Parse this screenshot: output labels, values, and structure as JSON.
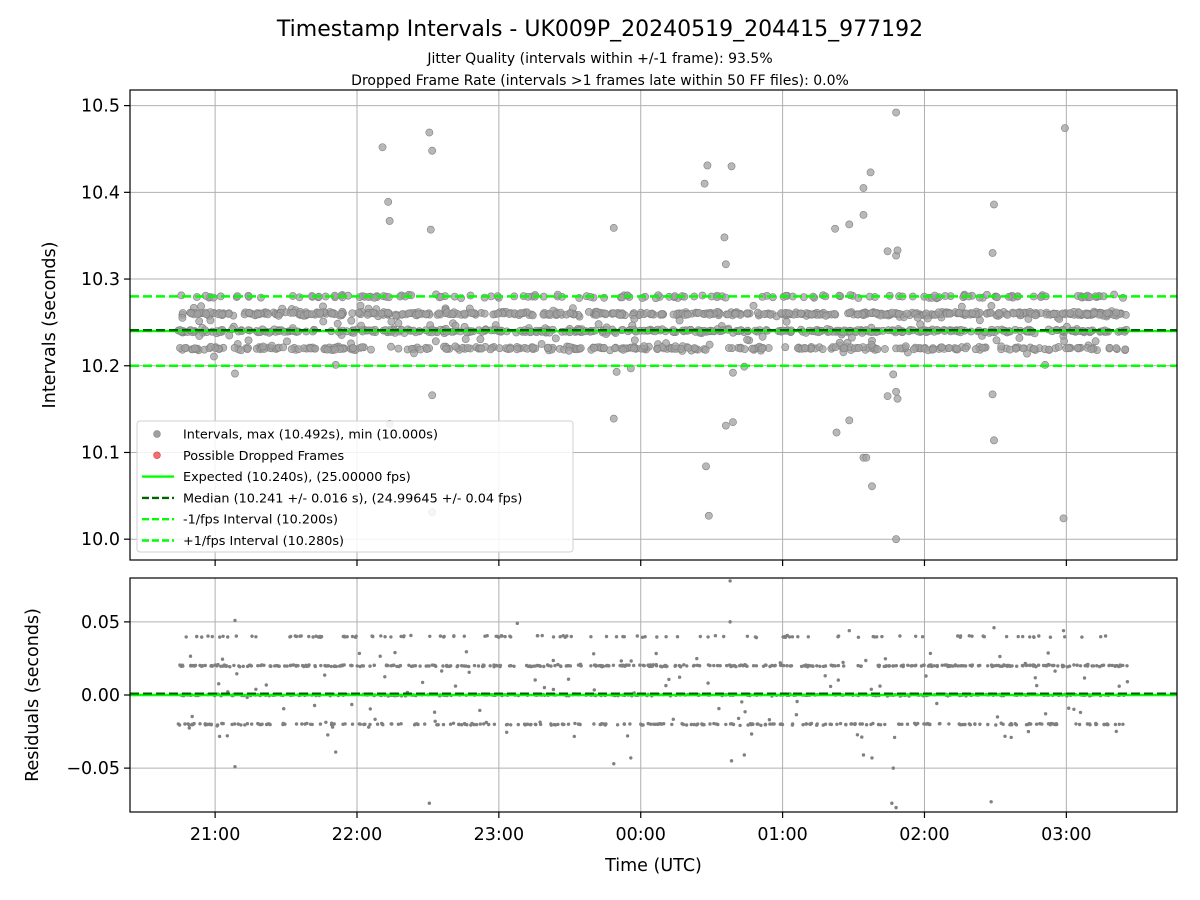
{
  "chart_data": {
    "type": "scatter",
    "title": "Timestamp Intervals - UK009P_20240519_204415_977192",
    "subtitle_lines": [
      "Jitter Quality (intervals within +/-1 frame): 93.5%",
      "Dropped Frame Rate (intervals >1 frames late within 50 FF files): 0.0%"
    ],
    "x_tick_labels": [
      "21:00",
      "22:00",
      "23:00",
      "00:00",
      "01:00",
      "02:00",
      "03:00"
    ],
    "x_ticks": [
      20.5,
      21.5,
      22.5,
      23.5,
      24.5,
      25.5,
      26.5
    ],
    "xlim": [
      19.9,
      27.28
    ],
    "xlabel": "Time (UTC)",
    "data_range_x": [
      20.24,
      26.94
    ],
    "grid": true,
    "top_panel": {
      "ylabel": "Intervals (seconds)",
      "ylim": [
        9.976,
        10.518
      ],
      "y_ticks": [
        10.0,
        10.1,
        10.2,
        10.3,
        10.4,
        10.5
      ],
      "y_tick_labels": [
        "10.0",
        "10.1",
        "10.2",
        "10.3",
        "10.4",
        "10.5"
      ],
      "band_levels": [
        10.22,
        10.24,
        10.26,
        10.28
      ],
      "outliers": [
        {
          "x": 21.68,
          "y": 10.452
        },
        {
          "x": 21.72,
          "y": 10.389
        },
        {
          "x": 21.73,
          "y": 10.367
        },
        {
          "x": 22.01,
          "y": 10.469
        },
        {
          "x": 22.03,
          "y": 10.448
        },
        {
          "x": 22.02,
          "y": 10.357
        },
        {
          "x": 22.03,
          "y": 10.166
        },
        {
          "x": 22.03,
          "y": 10.031
        },
        {
          "x": 21.73,
          "y": 10.133
        },
        {
          "x": 23.31,
          "y": 10.359
        },
        {
          "x": 23.31,
          "y": 10.139
        },
        {
          "x": 23.33,
          "y": 10.193
        },
        {
          "x": 23.43,
          "y": 10.197
        },
        {
          "x": 23.95,
          "y": 10.41
        },
        {
          "x": 23.97,
          "y": 10.431
        },
        {
          "x": 23.96,
          "y": 10.084
        },
        {
          "x": 23.98,
          "y": 10.027
        },
        {
          "x": 24.14,
          "y": 10.43
        },
        {
          "x": 24.09,
          "y": 10.348
        },
        {
          "x": 24.1,
          "y": 10.317
        },
        {
          "x": 24.1,
          "y": 10.131
        },
        {
          "x": 24.15,
          "y": 10.135
        },
        {
          "x": 24.15,
          "y": 10.192
        },
        {
          "x": 24.23,
          "y": 10.199
        },
        {
          "x": 24.87,
          "y": 10.358
        },
        {
          "x": 24.97,
          "y": 10.363
        },
        {
          "x": 25.07,
          "y": 10.374
        },
        {
          "x": 24.88,
          "y": 10.123
        },
        {
          "x": 24.97,
          "y": 10.137
        },
        {
          "x": 25.07,
          "y": 10.405
        },
        {
          "x": 25.12,
          "y": 10.423
        },
        {
          "x": 25.07,
          "y": 10.094
        },
        {
          "x": 25.09,
          "y": 10.094
        },
        {
          "x": 25.13,
          "y": 10.061
        },
        {
          "x": 25.24,
          "y": 10.332
        },
        {
          "x": 25.3,
          "y": 10.327
        },
        {
          "x": 25.31,
          "y": 10.333
        },
        {
          "x": 25.3,
          "y": 10.492
        },
        {
          "x": 25.24,
          "y": 10.165
        },
        {
          "x": 25.3,
          "y": 10.17
        },
        {
          "x": 25.31,
          "y": 10.162
        },
        {
          "x": 25.28,
          "y": 10.19
        },
        {
          "x": 25.3,
          "y": 10.0
        },
        {
          "x": 25.99,
          "y": 10.386
        },
        {
          "x": 25.98,
          "y": 10.33
        },
        {
          "x": 25.98,
          "y": 10.167
        },
        {
          "x": 25.99,
          "y": 10.114
        },
        {
          "x": 26.49,
          "y": 10.474
        },
        {
          "x": 26.48,
          "y": 10.024
        },
        {
          "x": 20.64,
          "y": 10.191
        },
        {
          "x": 21.35,
          "y": 10.201
        },
        {
          "x": 26.35,
          "y": 10.201
        }
      ]
    },
    "bottom_panel": {
      "ylabel": "Residuals (seconds)",
      "ylim": [
        -0.08,
        0.08
      ],
      "y_ticks": [
        -0.05,
        0.0,
        0.05
      ],
      "y_tick_labels": [
        "−0.05",
        "0.00",
        "0.05"
      ],
      "band_levels": [
        -0.02,
        0.0,
        0.02,
        0.04
      ],
      "outliers": [
        {
          "x": 24.13,
          "y": 0.078
        },
        {
          "x": 20.64,
          "y": 0.051
        },
        {
          "x": 22.63,
          "y": 0.049
        },
        {
          "x": 24.13,
          "y": 0.05
        },
        {
          "x": 20.64,
          "y": -0.049
        },
        {
          "x": 22.01,
          "y": -0.074
        },
        {
          "x": 23.31,
          "y": -0.047
        },
        {
          "x": 23.43,
          "y": -0.043
        },
        {
          "x": 24.14,
          "y": -0.045
        },
        {
          "x": 24.23,
          "y": -0.041
        },
        {
          "x": 25.07,
          "y": -0.041
        },
        {
          "x": 25.13,
          "y": -0.043
        },
        {
          "x": 25.28,
          "y": -0.05
        },
        {
          "x": 25.27,
          "y": -0.074
        },
        {
          "x": 25.3,
          "y": -0.077
        },
        {
          "x": 25.97,
          "y": -0.073
        },
        {
          "x": 21.35,
          "y": -0.039
        },
        {
          "x": 26.48,
          "y": 0.044
        },
        {
          "x": 24.97,
          "y": 0.044
        },
        {
          "x": 25.99,
          "y": 0.046
        }
      ]
    },
    "reference_lines": {
      "expected": 10.24,
      "median": 10.241,
      "lower": 10.2,
      "upper": 10.28,
      "residual_zero": 0.0,
      "residual_median": 0.001
    },
    "legend": {
      "placement": "lower-left",
      "entries": [
        {
          "label": "Intervals, max (10.492s), min (10.000s)",
          "kind": "marker",
          "color": "#a0a0a0"
        },
        {
          "label": "Possible Dropped Frames",
          "kind": "marker",
          "color": "#f07070"
        },
        {
          "label": "Expected (10.240s), (25.00000 fps)",
          "kind": "solid",
          "color": "#00ff00"
        },
        {
          "label": "Median (10.241 +/- 0.016 s), (24.99645 +/- 0.04 fps)",
          "kind": "dashed",
          "color": "#006400"
        },
        {
          "label": "-1/fps Interval (10.200s)",
          "kind": "dashed",
          "color": "#00ff00"
        },
        {
          "label": "+1/fps Interval (10.280s)",
          "kind": "dashed",
          "color": "#00ff00"
        }
      ]
    },
    "colors": {
      "points": "#808080",
      "expected": "#00ff00",
      "median": "#006400",
      "fps_bounds": "#00ff00",
      "grid": "#b0b0b0"
    }
  }
}
